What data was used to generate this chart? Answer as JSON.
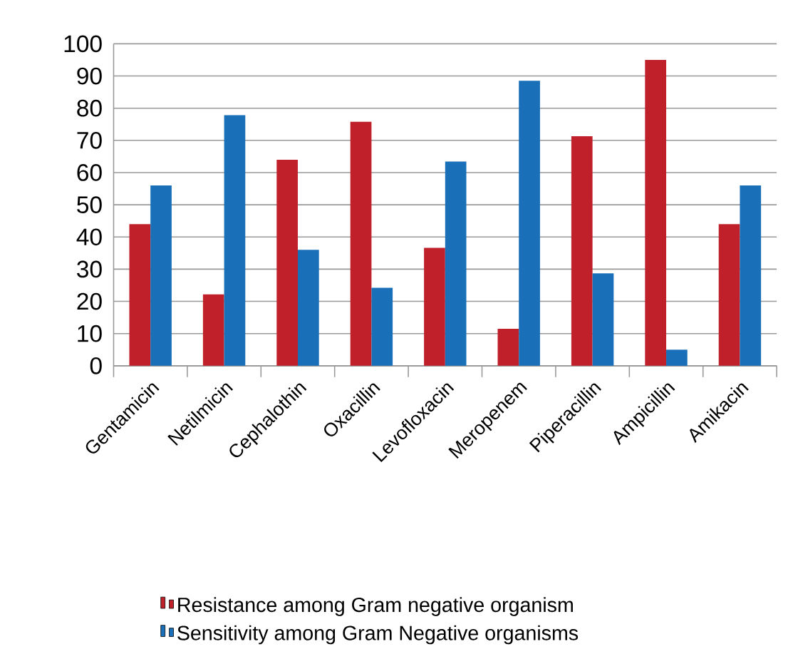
{
  "chart_data": {
    "type": "bar",
    "categories": [
      "Gentamicin",
      "Netilmicin",
      "Cephalothin",
      "Oxacillin",
      "Levofloxacin",
      "Meropenem",
      "Piperacillin",
      "Ampicillin",
      "Amikacin"
    ],
    "series": [
      {
        "name": "Resistance among Gram negative organism",
        "color": "#c0202a",
        "values": [
          44,
          22.2,
          64,
          75.8,
          36.6,
          11.5,
          71.3,
          95,
          44
        ]
      },
      {
        "name": "Sensitivity among Gram Negative organisms",
        "color": "#1a70b8",
        "values": [
          56,
          77.8,
          36,
          24.2,
          63.4,
          88.5,
          28.7,
          5,
          56
        ]
      }
    ],
    "ylim": [
      0,
      100
    ],
    "yticks": [
      0,
      10,
      20,
      30,
      40,
      50,
      60,
      70,
      80,
      90,
      100
    ],
    "grid": "y",
    "legend": "bottom"
  }
}
